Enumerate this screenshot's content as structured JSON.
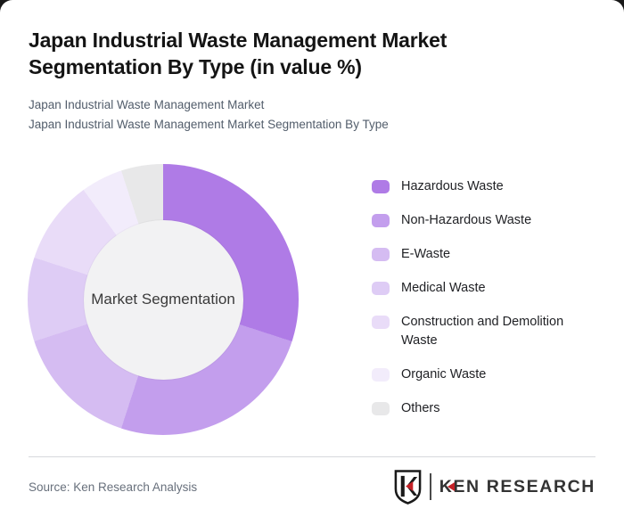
{
  "window": {
    "background": "#181818",
    "card_background": "#ffffff"
  },
  "header": {
    "title": "Japan Industrial Waste Management Market Segmentation By Type (in value %)",
    "subtitle_line1": "Japan Industrial Waste Management Market",
    "subtitle_line2": "Japan Industrial Waste Management Market Segmentation By Type"
  },
  "chart_data": {
    "type": "pie",
    "subtype": "donut",
    "title": "Japan Industrial Waste Management Market Segmentation By Type (in value %)",
    "center_label": "Market Segmentation",
    "unit": "value %",
    "start_angle_deg": 0,
    "direction": "clockwise",
    "legend_position": "right",
    "hole_color": "#f2f2f3",
    "segments": [
      {
        "label": "Hazardous Waste",
        "value": 30,
        "color": "#AF7BE6"
      },
      {
        "label": "Non-Hazardous Waste",
        "value": 25,
        "color": "#C39EED"
      },
      {
        "label": "E-Waste",
        "value": 15,
        "color": "#D5BCF2"
      },
      {
        "label": "Medical Waste",
        "value": 10,
        "color": "#DECCF5"
      },
      {
        "label": "Construction and Demolition Waste",
        "value": 10,
        "color": "#E9DCF8"
      },
      {
        "label": "Organic Waste",
        "value": 5,
        "color": "#F2ECFB"
      },
      {
        "label": "Others",
        "value": 5,
        "color": "#E8E8E9"
      }
    ]
  },
  "footer": {
    "source": "Source: Ken Research Analysis",
    "logo": {
      "wordmark": "KEN RESEARCH",
      "shield_letter": "K",
      "accent_color": "#C42127",
      "text_color": "#333333"
    }
  }
}
